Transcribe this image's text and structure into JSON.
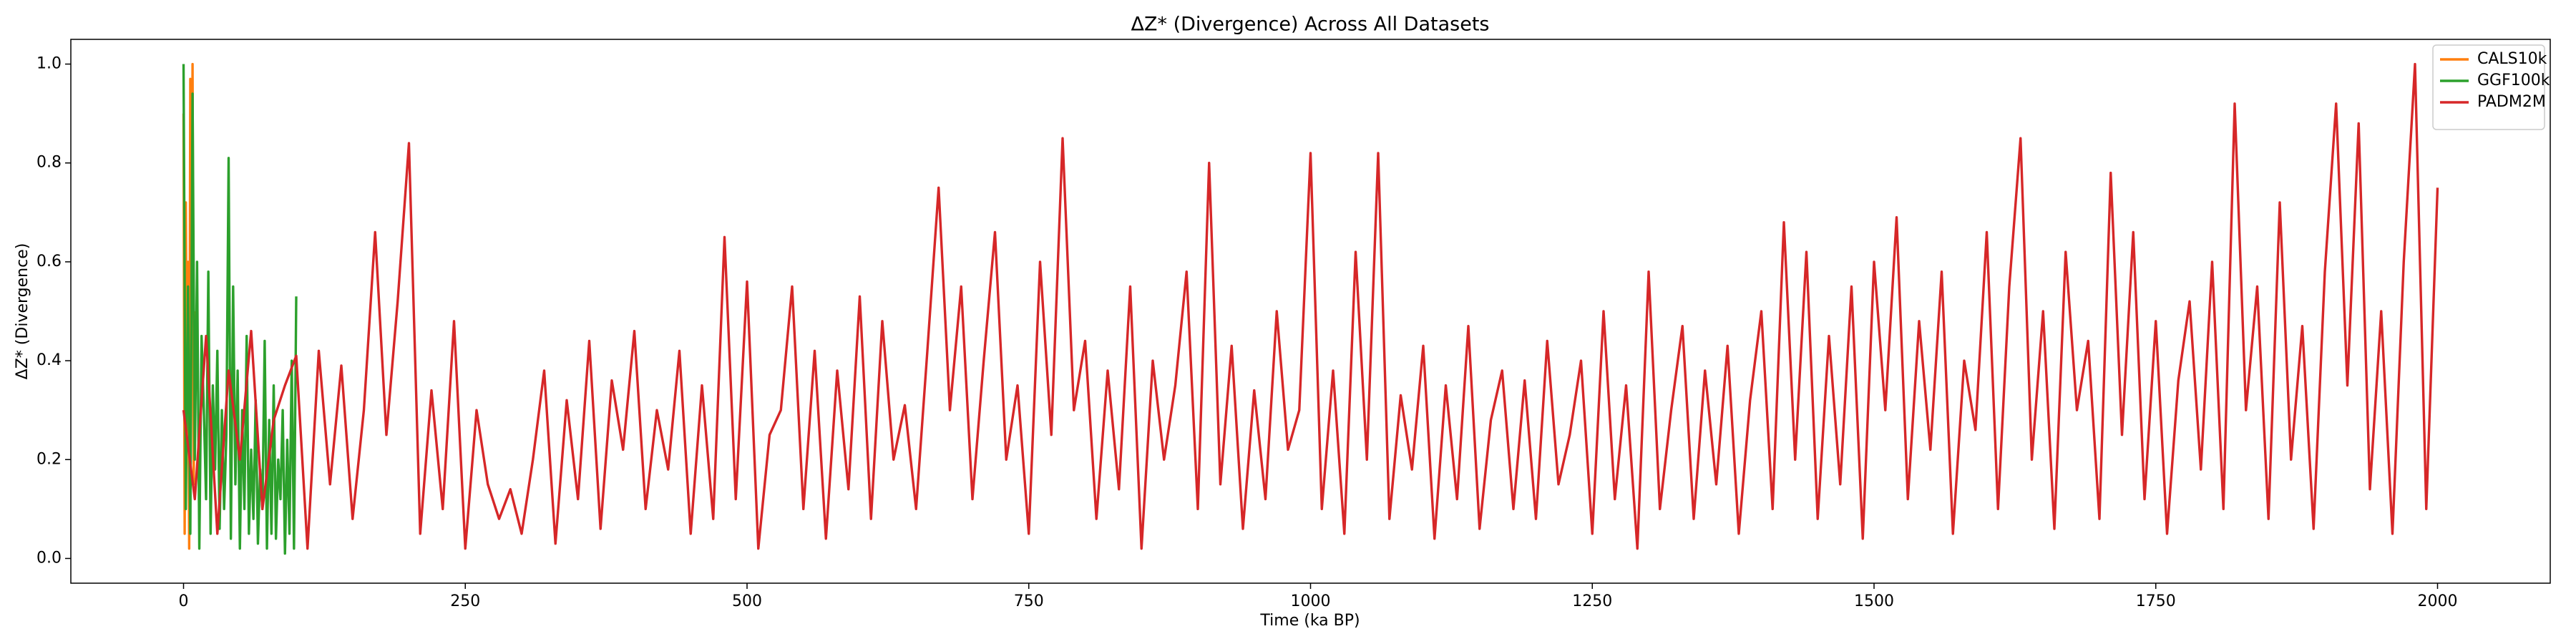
{
  "chart_data": {
    "type": "line",
    "title": "ΔZ* (Divergence) Across All Datasets",
    "x_label": "Time (ka BP)",
    "y_label": "ΔZ* (Divergence)",
    "xlim": [
      -100,
      2100
    ],
    "ylim": [
      -0.05,
      1.05
    ],
    "xticks": [
      0,
      250,
      500,
      750,
      1000,
      1250,
      1500,
      1750,
      2000
    ],
    "yticks": [
      {
        "value": 0,
        "label": "0.0"
      },
      0.2,
      0.4,
      0.6,
      0.8,
      {
        "value": 1,
        "label": "1.0"
      }
    ],
    "grid": false,
    "legend_loc": "upper right",
    "series": [
      {
        "name": "CALS10k",
        "color": "#ff7f0e",
        "x": [
          0,
          1,
          2,
          3,
          4,
          5,
          6,
          7,
          8,
          9,
          10
        ],
        "values": [
          0.9,
          0.05,
          0.72,
          0.3,
          0.6,
          0.02,
          0.97,
          0.4,
          1.0,
          0.15,
          0.5
        ]
      },
      {
        "name": "GGF100k",
        "color": "#2ca02c",
        "x": [
          0,
          2,
          4,
          6,
          8,
          10,
          12,
          14,
          16,
          18,
          20,
          22,
          24,
          26,
          28,
          30,
          32,
          34,
          36,
          38,
          40,
          42,
          44,
          46,
          48,
          50,
          52,
          54,
          56,
          58,
          60,
          62,
          64,
          66,
          68,
          70,
          72,
          74,
          76,
          78,
          80,
          82,
          84,
          86,
          88,
          90,
          92,
          94,
          96,
          98,
          100
        ],
        "values": [
          1.0,
          0.1,
          0.55,
          0.05,
          0.94,
          0.2,
          0.6,
          0.02,
          0.45,
          0.3,
          0.12,
          0.58,
          0.05,
          0.35,
          0.18,
          0.42,
          0.06,
          0.3,
          0.1,
          0.25,
          0.81,
          0.04,
          0.55,
          0.15,
          0.38,
          0.02,
          0.3,
          0.1,
          0.45,
          0.05,
          0.22,
          0.08,
          0.32,
          0.03,
          0.18,
          0.1,
          0.44,
          0.02,
          0.28,
          0.05,
          0.35,
          0.04,
          0.2,
          0.12,
          0.3,
          0.01,
          0.24,
          0.05,
          0.4,
          0.02,
          0.53
        ]
      },
      {
        "name": "PADM2M",
        "color": "#d62728",
        "x": [
          0,
          10,
          20,
          30,
          40,
          50,
          60,
          70,
          80,
          90,
          100,
          110,
          120,
          130,
          140,
          150,
          160,
          170,
          180,
          190,
          200,
          210,
          220,
          230,
          240,
          250,
          260,
          270,
          280,
          290,
          300,
          310,
          320,
          330,
          340,
          350,
          360,
          370,
          380,
          390,
          400,
          410,
          420,
          430,
          440,
          450,
          460,
          470,
          480,
          490,
          500,
          510,
          520,
          530,
          540,
          550,
          560,
          570,
          580,
          590,
          600,
          610,
          620,
          630,
          640,
          650,
          660,
          670,
          680,
          690,
          700,
          710,
          720,
          730,
          740,
          750,
          760,
          770,
          780,
          790,
          800,
          810,
          820,
          830,
          840,
          850,
          860,
          870,
          880,
          890,
          900,
          910,
          920,
          930,
          940,
          950,
          960,
          970,
          980,
          990,
          1000,
          1010,
          1020,
          1030,
          1040,
          1050,
          1060,
          1070,
          1080,
          1090,
          1100,
          1110,
          1120,
          1130,
          1140,
          1150,
          1160,
          1170,
          1180,
          1190,
          1200,
          1210,
          1220,
          1230,
          1240,
          1250,
          1260,
          1270,
          1280,
          1290,
          1300,
          1310,
          1320,
          1330,
          1340,
          1350,
          1360,
          1370,
          1380,
          1390,
          1400,
          1410,
          1420,
          1430,
          1440,
          1450,
          1460,
          1470,
          1480,
          1490,
          1500,
          1510,
          1520,
          1530,
          1540,
          1550,
          1560,
          1570,
          1580,
          1590,
          1600,
          1610,
          1620,
          1630,
          1640,
          1650,
          1660,
          1670,
          1680,
          1690,
          1700,
          1710,
          1720,
          1730,
          1740,
          1750,
          1760,
          1770,
          1780,
          1790,
          1800,
          1810,
          1820,
          1830,
          1840,
          1850,
          1860,
          1870,
          1880,
          1890,
          1900,
          1910,
          1920,
          1930,
          1940,
          1950,
          1960,
          1970,
          1980,
          1990,
          2000
        ],
        "values": [
          0.3,
          0.12,
          0.45,
          0.05,
          0.38,
          0.2,
          0.46,
          0.1,
          0.28,
          0.35,
          0.41,
          0.02,
          0.42,
          0.15,
          0.39,
          0.08,
          0.3,
          0.66,
          0.25,
          0.52,
          0.84,
          0.05,
          0.34,
          0.1,
          0.48,
          0.02,
          0.3,
          0.15,
          0.08,
          0.14,
          0.05,
          0.2,
          0.38,
          0.03,
          0.32,
          0.12,
          0.44,
          0.06,
          0.36,
          0.22,
          0.46,
          0.1,
          0.3,
          0.18,
          0.42,
          0.05,
          0.35,
          0.08,
          0.65,
          0.12,
          0.56,
          0.02,
          0.25,
          0.3,
          0.55,
          0.1,
          0.42,
          0.04,
          0.38,
          0.14,
          0.53,
          0.08,
          0.48,
          0.2,
          0.31,
          0.1,
          0.42,
          0.75,
          0.3,
          0.55,
          0.12,
          0.4,
          0.66,
          0.2,
          0.35,
          0.05,
          0.6,
          0.25,
          0.85,
          0.3,
          0.44,
          0.08,
          0.38,
          0.14,
          0.55,
          0.02,
          0.4,
          0.2,
          0.35,
          0.58,
          0.1,
          0.8,
          0.15,
          0.43,
          0.06,
          0.34,
          0.12,
          0.5,
          0.22,
          0.3,
          0.82,
          0.1,
          0.38,
          0.05,
          0.62,
          0.2,
          0.82,
          0.08,
          0.33,
          0.18,
          0.43,
          0.04,
          0.35,
          0.12,
          0.47,
          0.06,
          0.28,
          0.38,
          0.1,
          0.36,
          0.08,
          0.44,
          0.15,
          0.25,
          0.4,
          0.05,
          0.5,
          0.12,
          0.35,
          0.02,
          0.58,
          0.1,
          0.3,
          0.47,
          0.08,
          0.38,
          0.15,
          0.43,
          0.05,
          0.32,
          0.5,
          0.1,
          0.68,
          0.2,
          0.62,
          0.08,
          0.45,
          0.15,
          0.55,
          0.04,
          0.6,
          0.3,
          0.69,
          0.12,
          0.48,
          0.22,
          0.58,
          0.05,
          0.4,
          0.26,
          0.66,
          0.1,
          0.55,
          0.85,
          0.2,
          0.5,
          0.06,
          0.62,
          0.3,
          0.44,
          0.08,
          0.78,
          0.25,
          0.66,
          0.12,
          0.48,
          0.05,
          0.36,
          0.52,
          0.18,
          0.6,
          0.1,
          0.92,
          0.3,
          0.55,
          0.08,
          0.72,
          0.2,
          0.47,
          0.06,
          0.58,
          0.92,
          0.35,
          0.88,
          0.14,
          0.5,
          0.05,
          0.6,
          1.0,
          0.1,
          0.75
        ]
      }
    ]
  }
}
